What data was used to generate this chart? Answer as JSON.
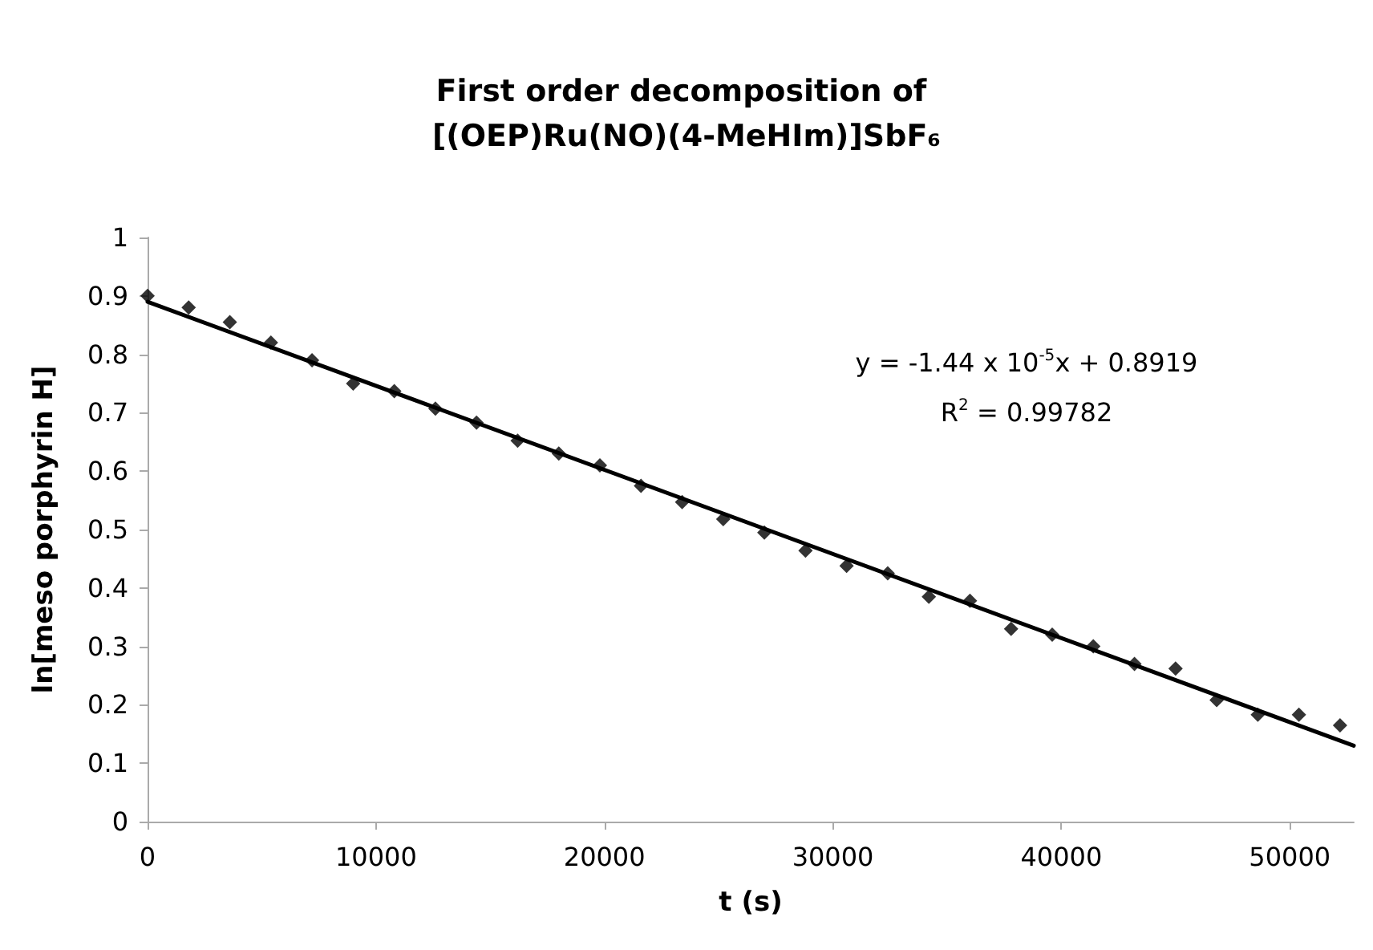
{
  "chart_data": {
    "type": "scatter",
    "title": "First order decomposition of [(OEP)Ru(NO)(4-MeHIm)]SbF₆",
    "xlabel": "t (s)",
    "ylabel": "ln[meso porphyrin H]",
    "x": [
      0,
      1800,
      3600,
      5400,
      7200,
      9000,
      10800,
      12600,
      14400,
      16200,
      18000,
      19800,
      21600,
      23400,
      25200,
      27000,
      28800,
      30600,
      32400,
      34200,
      36000,
      37800,
      39600,
      41400,
      43200,
      45000,
      46800,
      48600,
      50400,
      52200
    ],
    "series": [
      {
        "color": "#000000",
        "marker": "diamond",
        "values": [
          0.9,
          0.88,
          0.855,
          0.82,
          0.79,
          0.75,
          0.737,
          0.707,
          0.683,
          0.652,
          0.63,
          0.61,
          0.575,
          0.547,
          0.518,
          0.495,
          0.464,
          0.438,
          0.425,
          0.385,
          0.378,
          0.33,
          0.32,
          0.3,
          0.27,
          0.262,
          0.208,
          0.183,
          0.183,
          0.165
        ]
      },
      {
        "type": "line",
        "color": "#000000",
        "line_style": "solid",
        "marker": "none",
        "x": [
          0,
          52800
        ],
        "values": [
          0.89,
          0.13
        ]
      }
    ],
    "annotations": [
      "y = -1.44 x 10$^{-5}$x + 0.8919",
      "R$^{2}$ = 0.99782"
    ],
    "xlim": [
      0,
      52800
    ],
    "xticks": [
      0,
      10000,
      20000,
      30000,
      40000,
      50000
    ],
    "ylim": [
      0,
      1
    ],
    "yticks": [
      0,
      0.1,
      0.2,
      0.3,
      0.4,
      0.5,
      0.6,
      0.7,
      0.8,
      0.9,
      1
    ],
    "grid": false
  }
}
